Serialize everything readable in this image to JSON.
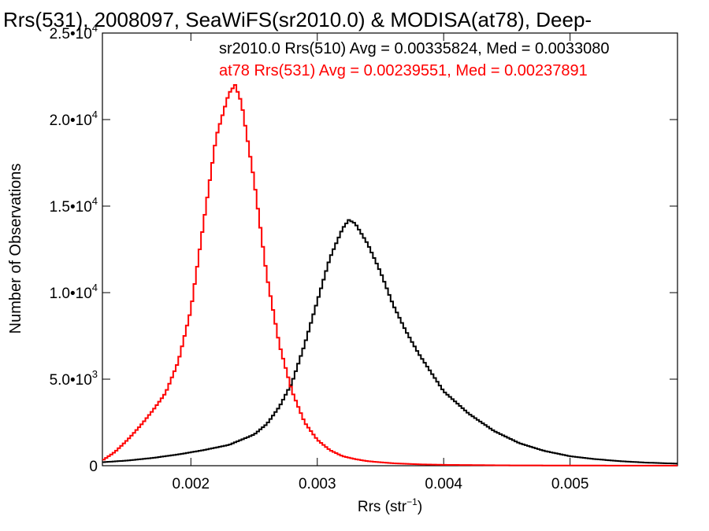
{
  "chart_data": {
    "type": "line",
    "title": "Rrs(531), 2008097, SeaWiFS(sr2010.0) & MODISA(at78), Deep-",
    "xlabel": "Rrs (str",
    "xlabel_sup": "−1",
    "xlabel_close": ")",
    "ylabel": "Number of Observations",
    "xlim": [
      0.0013,
      0.00585
    ],
    "ylim": [
      0,
      25000
    ],
    "x_ticks": [
      {
        "value": 0.002,
        "label": "0.002"
      },
      {
        "value": 0.003,
        "label": "0.003"
      },
      {
        "value": 0.004,
        "label": "0.004"
      },
      {
        "value": 0.005,
        "label": "0.005"
      }
    ],
    "y_ticks": [
      {
        "value": 0,
        "label": "0",
        "exp": ""
      },
      {
        "value": 5000,
        "label": "5.0•10",
        "exp": "3"
      },
      {
        "value": 10000,
        "label": "1.0•10",
        "exp": "4"
      },
      {
        "value": 15000,
        "label": "1.5•10",
        "exp": "4"
      },
      {
        "value": 20000,
        "label": "2.0•10",
        "exp": "4"
      },
      {
        "value": 25000,
        "label": "2.5•10",
        "exp": "4"
      }
    ],
    "annotations": [
      "sr2010.0 Rrs(510) Avg = 0.00335824, Med = 0.0033080",
      "at78 Rrs(531) Avg = 0.00239551, Med = 0.00237891"
    ],
    "series": [
      {
        "color": "#000000",
        "x": [
          0.0013,
          0.0015,
          0.0017,
          0.0019,
          0.0021,
          0.0023,
          0.0025,
          0.0026,
          0.0027,
          0.0028,
          0.0029,
          0.003,
          0.0031,
          0.0032,
          0.00325,
          0.0033,
          0.0034,
          0.0035,
          0.0036,
          0.0037,
          0.0038,
          0.0039,
          0.004,
          0.0042,
          0.0044,
          0.0046,
          0.0048,
          0.005,
          0.0052,
          0.0054,
          0.0056,
          0.00585
        ],
        "y": [
          200,
          300,
          450,
          650,
          900,
          1200,
          1800,
          2400,
          3400,
          4800,
          7000,
          9500,
          12000,
          13700,
          14200,
          14000,
          12800,
          11200,
          9300,
          7800,
          6500,
          5400,
          4300,
          3000,
          2000,
          1300,
          850,
          550,
          380,
          260,
          180,
          120
        ]
      },
      {
        "color": "#ff0000",
        "x": [
          0.0013,
          0.0014,
          0.0015,
          0.0016,
          0.0017,
          0.0018,
          0.0019,
          0.002,
          0.0021,
          0.0022,
          0.0023,
          0.00235,
          0.0024,
          0.0025,
          0.0026,
          0.0027,
          0.0028,
          0.0029,
          0.003,
          0.0031,
          0.0032,
          0.0033,
          0.0034,
          0.0036,
          0.0038,
          0.004,
          0.0045,
          0.005,
          0.00585
        ],
        "y": [
          300,
          800,
          1500,
          2300,
          3200,
          4200,
          6000,
          9000,
          14000,
          19000,
          21500,
          22000,
          21000,
          16500,
          11000,
          7000,
          4300,
          2500,
          1500,
          900,
          550,
          380,
          260,
          140,
          80,
          50,
          20,
          10,
          5
        ]
      }
    ],
    "grid": false,
    "legend": "none"
  }
}
